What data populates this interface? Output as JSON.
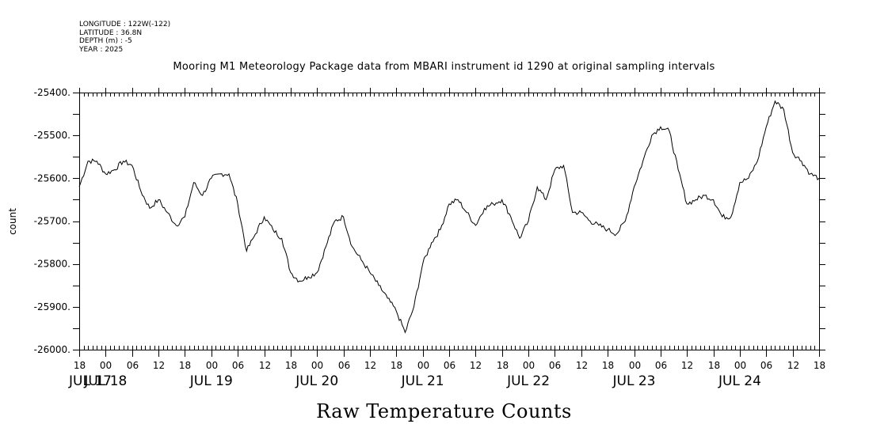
{
  "meta": {
    "longitude": "LONGITUDE : 122W(-122)",
    "latitude": "LATITUDE : 36.8N",
    "depth": "DEPTH (m) : -5",
    "year": "YEAR : 2025"
  },
  "caption": "Raw Temperature Counts",
  "chart_data": {
    "type": "line",
    "title": "Mooring M1 Meteorology Package data from MBARI instrument id 1290 at original sampling intervals",
    "ylabel": "count",
    "xlabel": "",
    "ylim": [
      -26000,
      -25400
    ],
    "yticks": [
      -25400,
      -25500,
      -25600,
      -25700,
      -25800,
      -25900,
      -26000
    ],
    "ytick_labels": [
      "-25400.",
      "-25500.",
      "-25600.",
      "-25700.",
      "-25800.",
      "-25900.",
      "-26000."
    ],
    "xlim": [
      "2025-07-17 18:00",
      "2025-07-24 18:00"
    ],
    "hour_tick_labels": [
      "18",
      "00",
      "06",
      "12",
      "18",
      "00",
      "06",
      "12",
      "18",
      "00",
      "06",
      "12",
      "18",
      "00",
      "06",
      "12",
      "18",
      "00",
      "06",
      "12",
      "18",
      "00",
      "06",
      "12",
      "18",
      "00",
      "06",
      "12",
      "18"
    ],
    "day_labels": [
      {
        "label": "JUL 17",
        "date": "2025-07-17"
      },
      {
        "label": "JUL 18",
        "date": "2025-07-18"
      },
      {
        "label": "JUL 19",
        "date": "2025-07-19"
      },
      {
        "label": "JUL 20",
        "date": "2025-07-20"
      },
      {
        "label": "JUL 21",
        "date": "2025-07-21"
      },
      {
        "label": "JUL 22",
        "date": "2025-07-22"
      },
      {
        "label": "JUL 23",
        "date": "2025-07-23"
      },
      {
        "label": "JUL 24",
        "date": "2025-07-24"
      }
    ],
    "series": [
      {
        "color": "#000000",
        "x": [
          "2025-07-17 18:00",
          "2025-07-17 20:00",
          "2025-07-17 22:00",
          "2025-07-18 00:00",
          "2025-07-18 02:00",
          "2025-07-18 04:00",
          "2025-07-18 06:00",
          "2025-07-18 08:00",
          "2025-07-18 10:00",
          "2025-07-18 12:00",
          "2025-07-18 14:00",
          "2025-07-18 16:00",
          "2025-07-18 18:00",
          "2025-07-18 20:00",
          "2025-07-18 22:00",
          "2025-07-19 00:00",
          "2025-07-19 02:00",
          "2025-07-19 04:00",
          "2025-07-19 06:00",
          "2025-07-19 08:00",
          "2025-07-19 10:00",
          "2025-07-19 12:00",
          "2025-07-19 14:00",
          "2025-07-19 16:00",
          "2025-07-19 18:00",
          "2025-07-19 20:00",
          "2025-07-19 22:00",
          "2025-07-20 00:00",
          "2025-07-20 02:00",
          "2025-07-20 04:00",
          "2025-07-20 06:00",
          "2025-07-20 08:00",
          "2025-07-20 10:00",
          "2025-07-20 12:00",
          "2025-07-20 14:00",
          "2025-07-20 16:00",
          "2025-07-20 18:00",
          "2025-07-20 20:00",
          "2025-07-20 22:00",
          "2025-07-21 00:00",
          "2025-07-21 02:00",
          "2025-07-21 04:00",
          "2025-07-21 06:00",
          "2025-07-21 08:00",
          "2025-07-21 10:00",
          "2025-07-21 12:00",
          "2025-07-21 14:00",
          "2025-07-21 16:00",
          "2025-07-21 18:00",
          "2025-07-21 20:00",
          "2025-07-21 22:00",
          "2025-07-22 00:00",
          "2025-07-22 02:00",
          "2025-07-22 04:00",
          "2025-07-22 06:00",
          "2025-07-22 08:00",
          "2025-07-22 10:00",
          "2025-07-22 12:00",
          "2025-07-22 14:00",
          "2025-07-22 16:00",
          "2025-07-22 18:00",
          "2025-07-22 20:00",
          "2025-07-22 22:00",
          "2025-07-23 00:00",
          "2025-07-23 02:00",
          "2025-07-23 04:00",
          "2025-07-23 06:00",
          "2025-07-23 08:00",
          "2025-07-23 10:00",
          "2025-07-23 12:00",
          "2025-07-23 14:00",
          "2025-07-23 16:00",
          "2025-07-23 18:00",
          "2025-07-23 20:00",
          "2025-07-23 22:00",
          "2025-07-24 00:00",
          "2025-07-24 02:00",
          "2025-07-24 04:00",
          "2025-07-24 06:00",
          "2025-07-24 08:00",
          "2025-07-24 10:00",
          "2025-07-24 12:00",
          "2025-07-24 14:00",
          "2025-07-24 16:00",
          "2025-07-24 18:00"
        ],
        "values": [
          -25620,
          -25560,
          -25560,
          -25590,
          -25580,
          -25560,
          -25570,
          -25630,
          -25670,
          -25650,
          -25680,
          -25710,
          -25690,
          -25610,
          -25640,
          -25600,
          -25590,
          -25590,
          -25660,
          -25770,
          -25730,
          -25690,
          -25720,
          -25740,
          -25820,
          -25840,
          -25830,
          -25820,
          -25760,
          -25700,
          -25690,
          -25760,
          -25790,
          -25820,
          -25850,
          -25880,
          -25910,
          -25960,
          -25900,
          -25800,
          -25750,
          -25720,
          -25660,
          -25650,
          -25680,
          -25710,
          -25670,
          -25660,
          -25650,
          -25690,
          -25740,
          -25700,
          -25620,
          -25650,
          -25580,
          -25570,
          -25680,
          -25680,
          -25700,
          -25710,
          -25720,
          -25730,
          -25700,
          -25620,
          -25560,
          -25500,
          -25480,
          -25490,
          -25580,
          -25660,
          -25650,
          -25640,
          -25650,
          -25690,
          -25690,
          -25610,
          -25600,
          -25560,
          -25480,
          -25420,
          -25440,
          -25540,
          -25560,
          -25590,
          -25600
        ]
      }
    ]
  }
}
